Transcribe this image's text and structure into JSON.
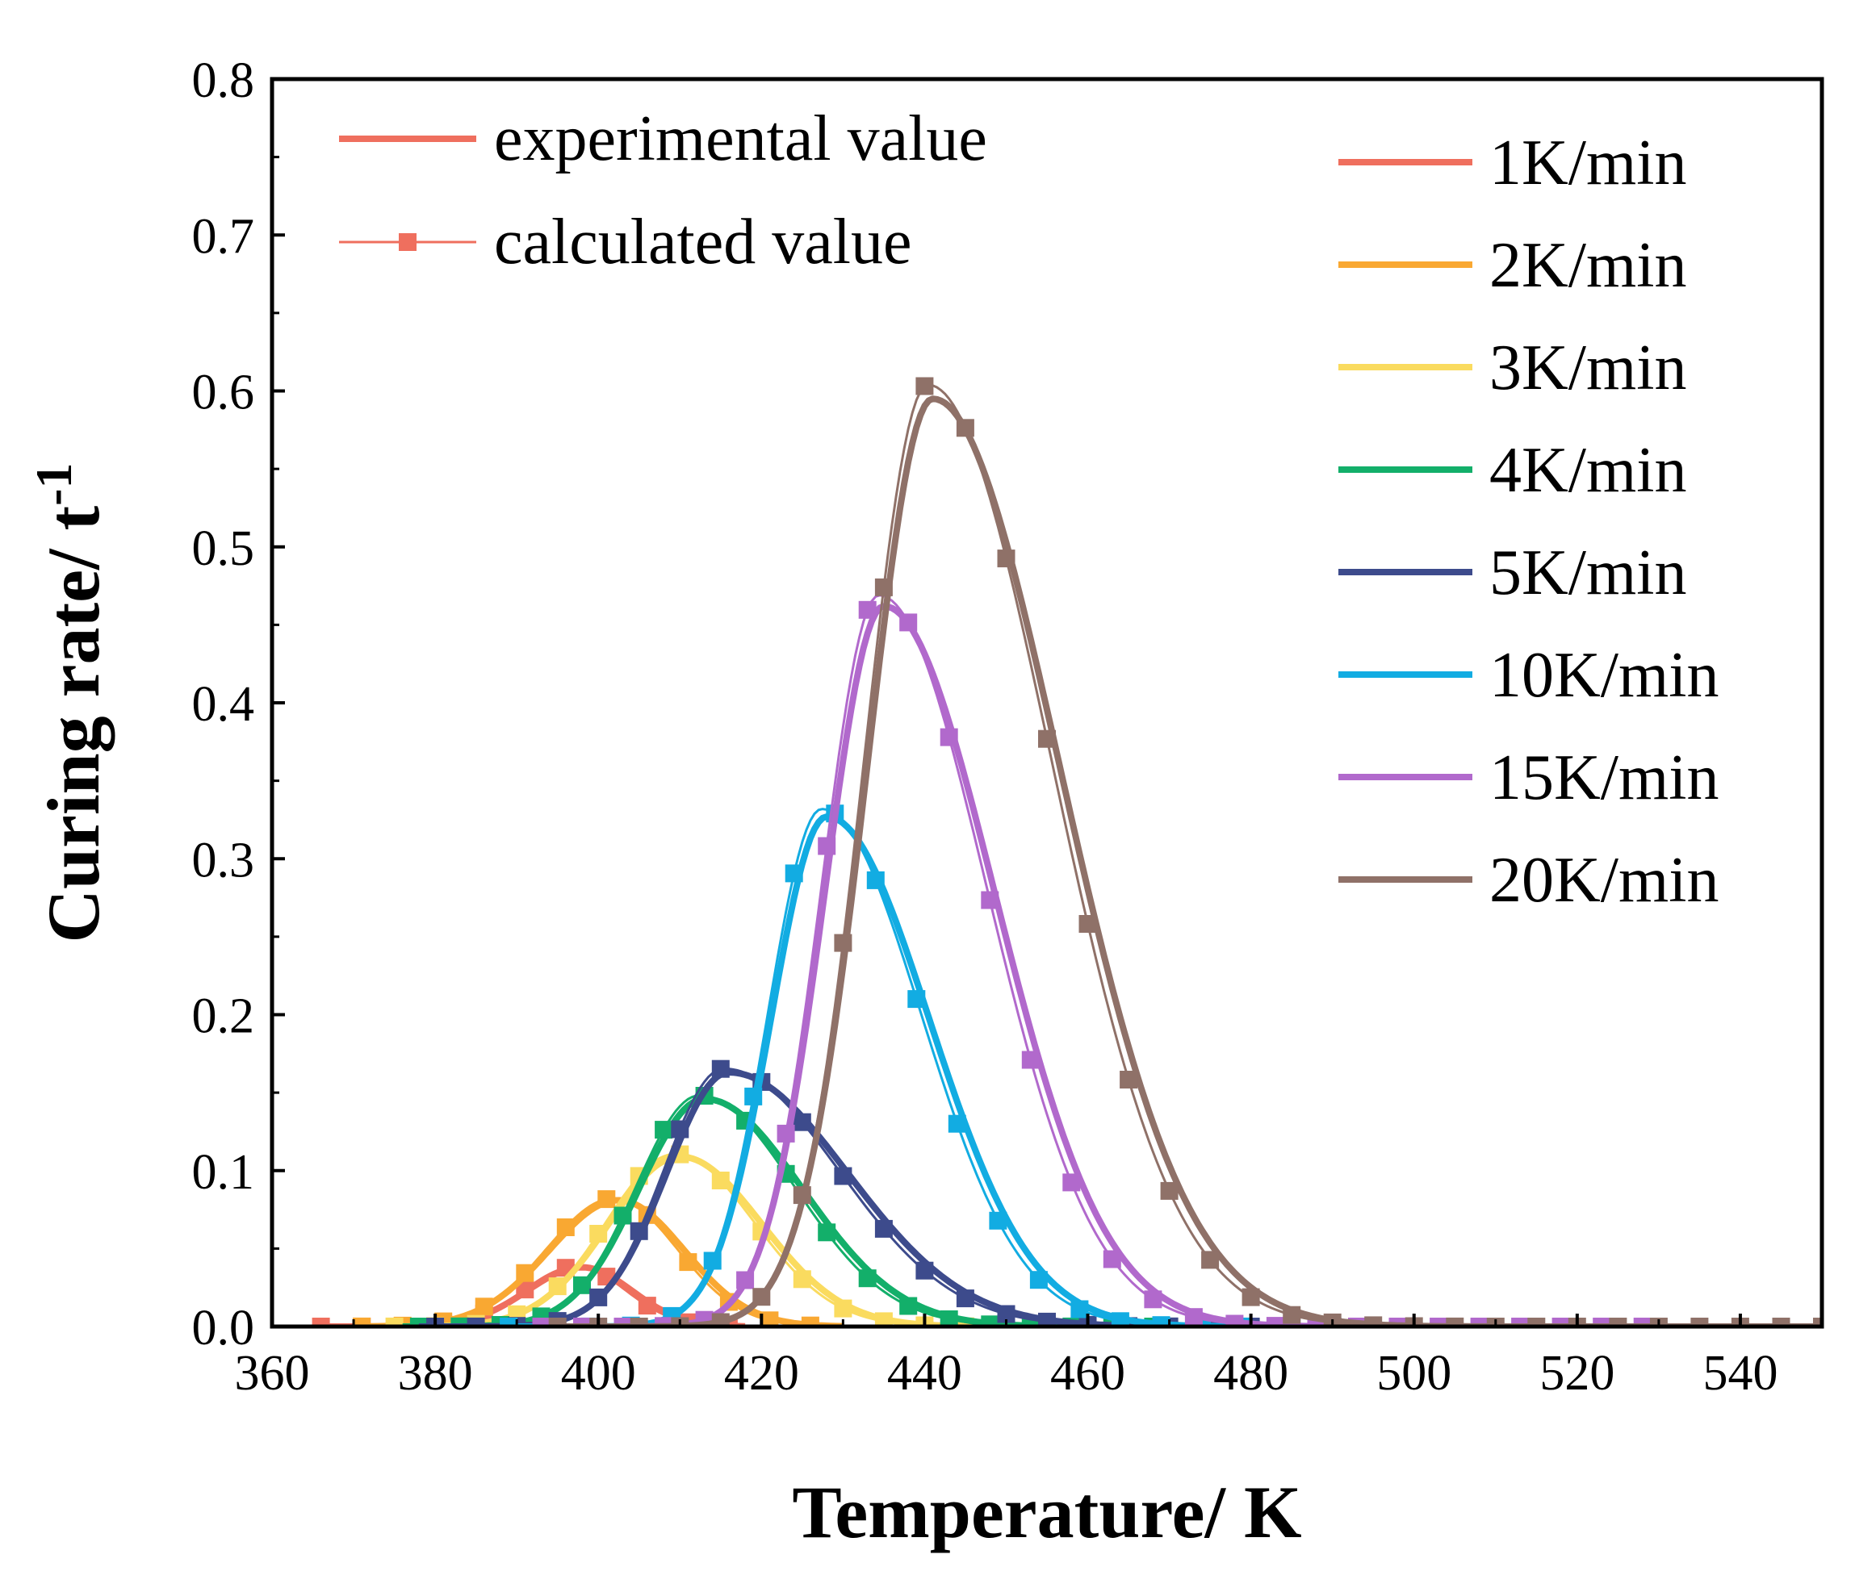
{
  "chart_data": {
    "type": "line",
    "xlabel": "Temperature/ K",
    "ylabel": "Curing rate/ t",
    "ylabel_superscript": "-1",
    "xlim": [
      360,
      550
    ],
    "ylim": [
      0,
      0.8
    ],
    "x_ticks": [
      "360",
      "380",
      "400",
      "420",
      "440",
      "460",
      "480",
      "500",
      "520",
      "540"
    ],
    "y_ticks": [
      "0.0",
      "0.1",
      "0.2",
      "0.3",
      "0.4",
      "0.5",
      "0.6",
      "0.7",
      "0.8"
    ],
    "grid": false,
    "style_legend": {
      "placement": "top-left",
      "items": [
        {
          "label": "experimental value",
          "style": "line"
        },
        {
          "label": "calculated value",
          "style": "line-square"
        }
      ],
      "color": "#EF6F5E"
    },
    "series_legend": {
      "placement": "top-right"
    },
    "series": [
      {
        "name": "1K/min",
        "color": "#EF6F5E",
        "peak": {
          "x": 398,
          "y": 0.038
        },
        "w_left": 6.7,
        "w_right": 6.1,
        "x_start": 366,
        "x_end": 418,
        "marker_start": 366,
        "marker_step": 5
      },
      {
        "name": "2K/min",
        "color": "#F9A832",
        "peak": {
          "x": 402.5,
          "y": 0.081
        },
        "w_left": 8.5,
        "w_right": 8.0,
        "x_start": 370,
        "x_end": 430,
        "marker_start": 371,
        "marker_step": 5
      },
      {
        "name": "3K/min",
        "color": "#FADB5F",
        "peak": {
          "x": 410,
          "y": 0.109
        },
        "w_left": 8.7,
        "w_right": 10.0,
        "x_start": 374,
        "x_end": 448,
        "marker_start": 375,
        "marker_step": 5
      },
      {
        "name": "4K/min",
        "color": "#13AF6A",
        "peak": {
          "x": 413,
          "y": 0.146
        },
        "w_left": 8.0,
        "w_right": 12.0,
        "x_start": 376,
        "x_end": 470,
        "marker_start": 378,
        "marker_step": 5
      },
      {
        "name": "5K/min",
        "color": "#3D4B8C",
        "peak": {
          "x": 416,
          "y": 0.163
        },
        "w_left": 7.6,
        "w_right": 14.5,
        "x_start": 378,
        "x_end": 492,
        "marker_start": 380,
        "marker_step": 5
      },
      {
        "name": "10K/min",
        "color": "#12ACE2",
        "peak": {
          "x": 428,
          "y": 0.327
        },
        "w_left": 6.8,
        "w_right": 12.5,
        "x_start": 388,
        "x_end": 506,
        "marker_start": 389,
        "marker_step": 5
      },
      {
        "name": "15K/min",
        "color": "#B169CC",
        "peak": {
          "x": 435,
          "y": 0.462
        },
        "w_left": 7.2,
        "w_right": 13.5,
        "x_start": 392,
        "x_end": 528,
        "marker_start": 393,
        "marker_step": 5
      },
      {
        "name": "20K/min",
        "color": "#8F7168",
        "peak": {
          "x": 441,
          "y": 0.595
        },
        "w_left": 8.0,
        "w_right": 15.5,
        "x_start": 394,
        "x_end": 550,
        "marker_start": 395,
        "marker_step": 5
      }
    ]
  }
}
